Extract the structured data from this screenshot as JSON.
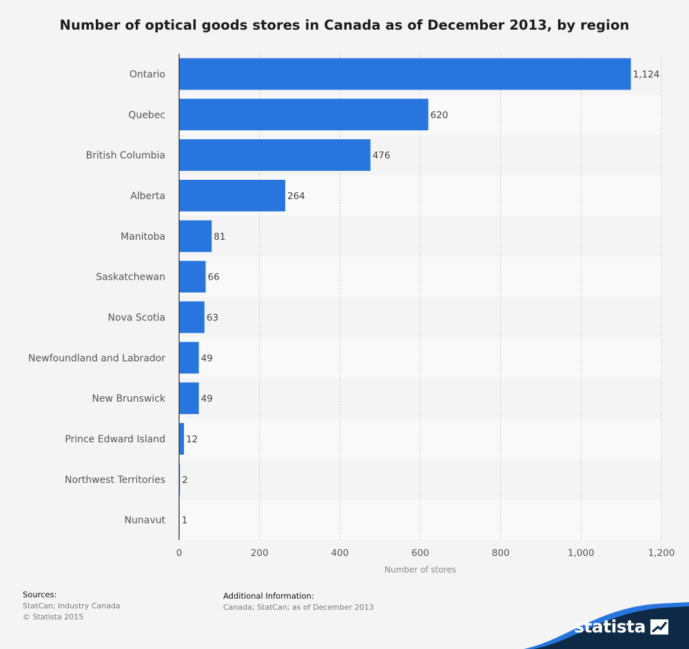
{
  "chart_data": {
    "type": "bar",
    "orientation": "horizontal",
    "title": "Number of optical goods stores in Canada as of December 2013, by region",
    "categories": [
      "Ontario",
      "Quebec",
      "British Columbia",
      "Alberta",
      "Manitoba",
      "Saskatchewan",
      "Nova Scotia",
      "Newfoundland and Labrador",
      "New Brunswick",
      "Prince Edward Island",
      "Northwest Territories",
      "Nunavut"
    ],
    "values": [
      1124,
      620,
      476,
      264,
      81,
      66,
      63,
      49,
      49,
      12,
      2,
      1
    ],
    "value_labels": [
      "1,124",
      "620",
      "476",
      "264",
      "81",
      "66",
      "63",
      "49",
      "49",
      "12",
      "2",
      "1"
    ],
    "xlabel": "Number of stores",
    "ylabel": "",
    "xlim": [
      0,
      1200
    ],
    "xticks": [
      0,
      200,
      400,
      600,
      800,
      1000,
      1200
    ],
    "xtick_labels": [
      "0",
      "200",
      "400",
      "600",
      "800",
      "1,000",
      "1,200"
    ],
    "grid": true,
    "bar_color": "#2876dd"
  },
  "footer": {
    "sources_heading": "Sources:",
    "sources_lines": [
      "StatCan; Industry Canada",
      "© Statista 2015"
    ],
    "additional_heading": "Additional Information:",
    "additional_line": "Canada; StatCan; as of December 2013"
  },
  "brand": {
    "name": "statista",
    "icon": "statista-logo-icon",
    "colors": {
      "navy": "#0e2a47",
      "blue": "#2876dd"
    }
  }
}
